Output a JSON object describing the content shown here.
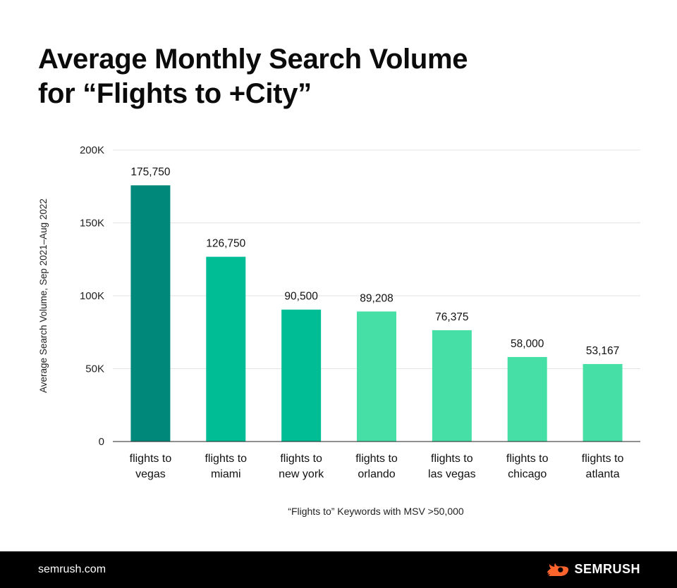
{
  "title": {
    "line1": "Average Monthly Search Volume",
    "line2": "for “Flights to +City”"
  },
  "chart_data": {
    "type": "bar",
    "title": "Average Monthly Search Volume for “Flights to +City”",
    "categories": [
      [
        "flights to",
        "vegas"
      ],
      [
        "flights to",
        "miami"
      ],
      [
        "flights to",
        "new york"
      ],
      [
        "flights to",
        "orlando"
      ],
      [
        "flights to",
        "las vegas"
      ],
      [
        "flights to",
        "chicago"
      ],
      [
        "flights to",
        "atlanta"
      ]
    ],
    "values": [
      175750,
      126750,
      90500,
      89208,
      76375,
      58000,
      53167
    ],
    "value_labels": [
      "175,750",
      "126,750",
      "90,500",
      "89,208",
      "76,375",
      "58,000",
      "53,167"
    ],
    "colors": [
      "#00897a",
      "#00bd96",
      "#00bd96",
      "#46e0a7",
      "#46e0a7",
      "#46e0a7",
      "#46e0a7"
    ],
    "ylim": [
      0,
      200000
    ],
    "yticks": [
      0,
      50000,
      100000,
      150000,
      200000
    ],
    "ytick_labels": [
      "0",
      "50K",
      "100K",
      "150K",
      "200K"
    ],
    "ylabel": "Average Search Volume, Sep 2021–Aug 2022",
    "xlabel": "“Flights to” Keywords with MSV >50,000",
    "grid": true
  },
  "footer": {
    "url": "semrush.com",
    "brand": "SEMRUSH",
    "logo_icon": "semrush-fire-icon",
    "logo_color": "#ff642d"
  }
}
